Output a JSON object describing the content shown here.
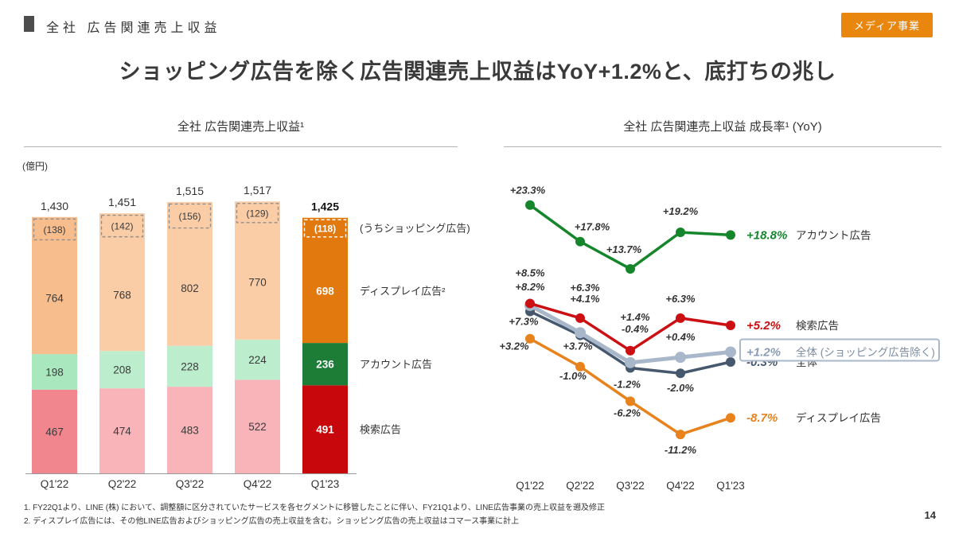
{
  "header": {
    "section_title": "全社 広告関連売上収益",
    "badge": "メディア事業",
    "badge_color": "#e8860d"
  },
  "title": "ショッピング広告を除く広告関連売上収益はYoY+1.2%と、底打ちの兆し",
  "page_number": "14",
  "footnotes": [
    "1.  FY22Q1より、LINE (株) において、調整額に区分されていたサービスを各セグメントに移管したことに伴い、FY21Q1より、LINE広告事業の売上収益を遡及修正",
    "2.  ディスプレイ広告には、その他LINE広告およびショッピング広告の売上収益を含む。ショッピング広告の売上収益はコマース事業に計上"
  ],
  "chart_data": [
    {
      "type": "bar",
      "title": "全社 広告関連売上収益¹",
      "unit": "(億円)",
      "categories": [
        "Q1'22",
        "Q2'22",
        "Q3'22",
        "Q4'22",
        "Q1'23"
      ],
      "totals": [
        "1,430",
        "1,451",
        "1,515",
        "1,517",
        "1,425"
      ],
      "series": [
        {
          "name": "検索広告",
          "values": [
            467,
            474,
            483,
            522,
            491
          ],
          "colors": [
            "#f2868e",
            "#f9b4ba",
            "#f9b4ba",
            "#f9b4ba",
            "#c8070d"
          ]
        },
        {
          "name": "アカウント広告",
          "values": [
            198,
            208,
            228,
            224,
            236
          ],
          "colors": [
            "#a9e8bf",
            "#bceecd",
            "#bceecd",
            "#bceecd",
            "#1d7c35"
          ]
        },
        {
          "name": "ディスプレイ広告",
          "values": [
            764,
            768,
            802,
            770,
            698
          ],
          "colors": [
            "#f8bd8c",
            "#fbcda6",
            "#fbcda6",
            "#fbcda6",
            "#e2790f"
          ]
        }
      ],
      "shopping": {
        "name": "うちショッピング広告",
        "values": [
          138,
          142,
          156,
          129,
          118
        ],
        "labels": [
          "(138)",
          "(142)",
          "(156)",
          "(129)",
          "(118)"
        ]
      },
      "legend": [
        "(うちショッピング広告)",
        "ディスプレイ広告²",
        "アカウント広告",
        "検索広告"
      ]
    },
    {
      "type": "line",
      "title": "全社 広告関連売上収益 成長率¹ (YoY)",
      "categories": [
        "Q1'22",
        "Q2'22",
        "Q3'22",
        "Q4'22",
        "Q1'23"
      ],
      "ylim": [
        -13,
        25
      ],
      "series": [
        {
          "name": "ディスプレイ広告",
          "color": "#e8821c",
          "values": [
            3.2,
            -1.0,
            -6.2,
            -11.2,
            -8.7
          ],
          "point_labels": [
            "+3.2%",
            "-1.0%",
            "-6.2%",
            "-11.2%"
          ],
          "label_offsets": [
            [
              -20,
              14
            ],
            [
              -9,
              16
            ],
            [
              -4,
              19
            ],
            [
              0,
              24
            ]
          ],
          "final_label": "-8.7%"
        },
        {
          "name": "全体",
          "color": "#45586e",
          "values": [
            7.3,
            3.7,
            -1.2,
            -2.0,
            -0.3
          ],
          "point_labels": [
            "+7.3%",
            "+3.7%",
            "-1.2%",
            "-2.0%"
          ],
          "label_offsets": [
            [
              -8,
              17
            ],
            [
              -3,
              18
            ],
            [
              -4,
              25
            ],
            [
              0,
              23
            ]
          ],
          "final_label": "-0.3%"
        },
        {
          "name": "全体 (ショッピング広告除く)",
          "color": "#a9b7ca",
          "label_color": "#8a9cb5",
          "values": [
            8.2,
            4.1,
            -0.4,
            0.4,
            1.2
          ],
          "point_labels": [
            "+8.2%",
            "+4.1%",
            "-0.4%",
            "+0.4%"
          ],
          "label_offsets": [
            [
              0,
              -19
            ],
            [
              6,
              -38
            ],
            [
              6,
              -38
            ],
            [
              0,
              -21
            ]
          ],
          "final_label": "+1.2%",
          "boxed": true
        },
        {
          "name": "検索広告",
          "color": "#cc0f12",
          "values": [
            8.5,
            6.3,
            1.4,
            6.3,
            5.2
          ],
          "point_labels": [
            "+8.5%",
            "+6.3%",
            "+1.4%",
            "+6.3%"
          ],
          "label_offsets": [
            [
              0,
              -34
            ],
            [
              6,
              -34
            ],
            [
              6,
              -38
            ],
            [
              0,
              -20
            ]
          ],
          "final_label": "+5.2%"
        },
        {
          "name": "アカウント広告",
          "color": "#15862c",
          "values": [
            23.3,
            17.8,
            13.7,
            19.2,
            18.8
          ],
          "point_labels": [
            "+23.3%",
            "+17.8%",
            "+13.7%",
            "+19.2%"
          ],
          "label_offsets": [
            [
              -3,
              -14
            ],
            [
              15,
              -14
            ],
            [
              -8,
              -20
            ],
            [
              0,
              -22
            ]
          ],
          "final_label": "+18.8%"
        }
      ]
    }
  ]
}
